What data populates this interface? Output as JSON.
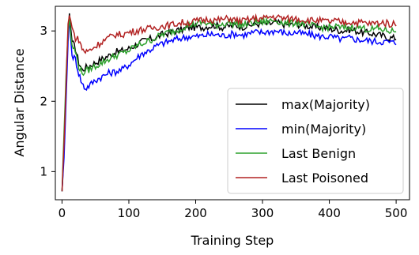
{
  "chart_data": {
    "type": "line",
    "xlabel": "Training Step",
    "ylabel": "Angular Distance",
    "xlim": [
      -10,
      520
    ],
    "ylim": [
      0.6,
      3.35
    ],
    "xticks": [
      0,
      100,
      200,
      300,
      400,
      500
    ],
    "xtick_labels": [
      "0",
      "100",
      "200",
      "300",
      "400",
      "500"
    ],
    "yticks": [
      1,
      2,
      3
    ],
    "ytick_labels": [
      "1",
      "2",
      "3"
    ],
    "grid": false,
    "legend_position": "lower-right",
    "series": [
      {
        "name": "max(Majority)",
        "color": "#000000",
        "points": [
          [
            0,
            0.72
          ],
          [
            3,
            1.3
          ],
          [
            6,
            2.2
          ],
          [
            9,
            2.95
          ],
          [
            11,
            3.25
          ],
          [
            13,
            3.05
          ],
          [
            15,
            2.85
          ],
          [
            20,
            2.75
          ],
          [
            25,
            2.55
          ],
          [
            30,
            2.45
          ],
          [
            40,
            2.5
          ],
          [
            50,
            2.55
          ],
          [
            60,
            2.6
          ],
          [
            70,
            2.65
          ],
          [
            80,
            2.7
          ],
          [
            90,
            2.72
          ],
          [
            100,
            2.75
          ],
          [
            110,
            2.8
          ],
          [
            120,
            2.85
          ],
          [
            130,
            2.88
          ],
          [
            140,
            2.9
          ],
          [
            150,
            2.95
          ],
          [
            160,
            2.97
          ],
          [
            170,
            3.0
          ],
          [
            180,
            3.02
          ],
          [
            190,
            3.05
          ],
          [
            200,
            3.05
          ],
          [
            210,
            3.05
          ],
          [
            220,
            3.07
          ],
          [
            230,
            3.08
          ],
          [
            240,
            3.05
          ],
          [
            250,
            3.07
          ],
          [
            260,
            3.08
          ],
          [
            270,
            3.06
          ],
          [
            280,
            3.08
          ],
          [
            290,
            3.1
          ],
          [
            300,
            3.1
          ],
          [
            310,
            3.1
          ],
          [
            320,
            3.12
          ],
          [
            330,
            3.1
          ],
          [
            340,
            3.08
          ],
          [
            350,
            3.1
          ],
          [
            360,
            3.08
          ],
          [
            370,
            3.07
          ],
          [
            380,
            3.05
          ],
          [
            390,
            3.05
          ],
          [
            400,
            3.03
          ],
          [
            410,
            3.02
          ],
          [
            420,
            3.0
          ],
          [
            430,
            3.02
          ],
          [
            440,
            3.0
          ],
          [
            450,
            2.98
          ],
          [
            460,
            2.97
          ],
          [
            470,
            2.95
          ],
          [
            480,
            2.93
          ],
          [
            490,
            2.9
          ],
          [
            500,
            2.9
          ]
        ]
      },
      {
        "name": "min(Majority)",
        "color": "#0000ff",
        "points": [
          [
            0,
            0.72
          ],
          [
            3,
            1.2
          ],
          [
            6,
            2.0
          ],
          [
            9,
            2.85
          ],
          [
            11,
            3.2
          ],
          [
            13,
            2.9
          ],
          [
            15,
            2.65
          ],
          [
            20,
            2.6
          ],
          [
            25,
            2.4
          ],
          [
            30,
            2.25
          ],
          [
            35,
            2.18
          ],
          [
            40,
            2.22
          ],
          [
            50,
            2.3
          ],
          [
            60,
            2.35
          ],
          [
            70,
            2.4
          ],
          [
            80,
            2.42
          ],
          [
            90,
            2.45
          ],
          [
            100,
            2.52
          ],
          [
            110,
            2.6
          ],
          [
            120,
            2.68
          ],
          [
            130,
            2.72
          ],
          [
            140,
            2.78
          ],
          [
            150,
            2.82
          ],
          [
            160,
            2.85
          ],
          [
            170,
            2.88
          ],
          [
            180,
            2.9
          ],
          [
            190,
            2.92
          ],
          [
            200,
            2.92
          ],
          [
            210,
            2.93
          ],
          [
            220,
            2.95
          ],
          [
            230,
            2.95
          ],
          [
            240,
            2.93
          ],
          [
            250,
            2.95
          ],
          [
            260,
            2.96
          ],
          [
            270,
            2.94
          ],
          [
            280,
            2.96
          ],
          [
            290,
            2.98
          ],
          [
            300,
            2.98
          ],
          [
            310,
            2.99
          ],
          [
            320,
            3.0
          ],
          [
            330,
            2.98
          ],
          [
            340,
            2.96
          ],
          [
            350,
            2.98
          ],
          [
            360,
            2.96
          ],
          [
            370,
            2.95
          ],
          [
            380,
            2.93
          ],
          [
            390,
            2.92
          ],
          [
            400,
            2.92
          ],
          [
            410,
            2.9
          ],
          [
            420,
            2.88
          ],
          [
            430,
            2.9
          ],
          [
            440,
            2.88
          ],
          [
            450,
            2.87
          ],
          [
            460,
            2.86
          ],
          [
            470,
            2.85
          ],
          [
            480,
            2.85
          ],
          [
            490,
            2.84
          ],
          [
            500,
            2.83
          ]
        ]
      },
      {
        "name": "Last Benign",
        "color": "#2ca02c",
        "points": [
          [
            0,
            0.72
          ],
          [
            3,
            1.55
          ],
          [
            6,
            2.35
          ],
          [
            9,
            3.0
          ],
          [
            11,
            3.2
          ],
          [
            13,
            2.95
          ],
          [
            15,
            2.8
          ],
          [
            20,
            2.7
          ],
          [
            25,
            2.5
          ],
          [
            30,
            2.4
          ],
          [
            40,
            2.45
          ],
          [
            50,
            2.5
          ],
          [
            60,
            2.55
          ],
          [
            70,
            2.6
          ],
          [
            80,
            2.65
          ],
          [
            90,
            2.68
          ],
          [
            100,
            2.72
          ],
          [
            110,
            2.78
          ],
          [
            120,
            2.82
          ],
          [
            130,
            2.86
          ],
          [
            140,
            2.9
          ],
          [
            150,
            2.95
          ],
          [
            160,
            2.98
          ],
          [
            170,
            3.0
          ],
          [
            180,
            3.05
          ],
          [
            190,
            3.08
          ],
          [
            200,
            3.1
          ],
          [
            210,
            3.12
          ],
          [
            220,
            3.1
          ],
          [
            230,
            3.08
          ],
          [
            240,
            3.1
          ],
          [
            250,
            3.12
          ],
          [
            260,
            3.1
          ],
          [
            270,
            3.08
          ],
          [
            280,
            3.1
          ],
          [
            290,
            3.12
          ],
          [
            300,
            3.12
          ],
          [
            310,
            3.14
          ],
          [
            320,
            3.15
          ],
          [
            330,
            3.12
          ],
          [
            340,
            3.1
          ],
          [
            350,
            3.12
          ],
          [
            360,
            3.1
          ],
          [
            370,
            3.08
          ],
          [
            380,
            3.06
          ],
          [
            390,
            3.05
          ],
          [
            400,
            3.05
          ],
          [
            410,
            3.06
          ],
          [
            420,
            3.04
          ],
          [
            430,
            3.05
          ],
          [
            440,
            3.06
          ],
          [
            450,
            3.04
          ],
          [
            460,
            3.02
          ],
          [
            470,
            3.03
          ],
          [
            480,
            3.02
          ],
          [
            490,
            3.0
          ],
          [
            500,
            3.0
          ]
        ]
      },
      {
        "name": "Last Poisoned",
        "color": "#b22222",
        "points": [
          [
            0,
            0.72
          ],
          [
            3,
            1.4
          ],
          [
            6,
            2.2
          ],
          [
            9,
            3.1
          ],
          [
            11,
            3.22
          ],
          [
            13,
            3.15
          ],
          [
            15,
            3.05
          ],
          [
            20,
            2.9
          ],
          [
            25,
            2.88
          ],
          [
            30,
            2.75
          ],
          [
            35,
            2.7
          ],
          [
            40,
            2.72
          ],
          [
            50,
            2.78
          ],
          [
            60,
            2.85
          ],
          [
            70,
            2.9
          ],
          [
            80,
            2.95
          ],
          [
            90,
            2.95
          ],
          [
            100,
            2.98
          ],
          [
            110,
            3.0
          ],
          [
            120,
            3.02
          ],
          [
            130,
            3.03
          ],
          [
            140,
            3.05
          ],
          [
            150,
            3.07
          ],
          [
            160,
            3.08
          ],
          [
            170,
            3.1
          ],
          [
            180,
            3.12
          ],
          [
            190,
            3.12
          ],
          [
            200,
            3.14
          ],
          [
            210,
            3.15
          ],
          [
            220,
            3.17
          ],
          [
            230,
            3.15
          ],
          [
            240,
            3.16
          ],
          [
            250,
            3.18
          ],
          [
            260,
            3.15
          ],
          [
            270,
            3.14
          ],
          [
            280,
            3.16
          ],
          [
            290,
            3.18
          ],
          [
            300,
            3.17
          ],
          [
            310,
            3.2
          ],
          [
            320,
            3.2
          ],
          [
            330,
            3.18
          ],
          [
            340,
            3.17
          ],
          [
            350,
            3.18
          ],
          [
            360,
            3.16
          ],
          [
            370,
            3.15
          ],
          [
            380,
            3.15
          ],
          [
            390,
            3.14
          ],
          [
            400,
            3.13
          ],
          [
            410,
            3.14
          ],
          [
            420,
            3.12
          ],
          [
            430,
            3.13
          ],
          [
            440,
            3.12
          ],
          [
            450,
            3.12
          ],
          [
            460,
            3.1
          ],
          [
            470,
            3.11
          ],
          [
            480,
            3.12
          ],
          [
            490,
            3.1
          ],
          [
            500,
            3.1
          ]
        ]
      }
    ]
  }
}
